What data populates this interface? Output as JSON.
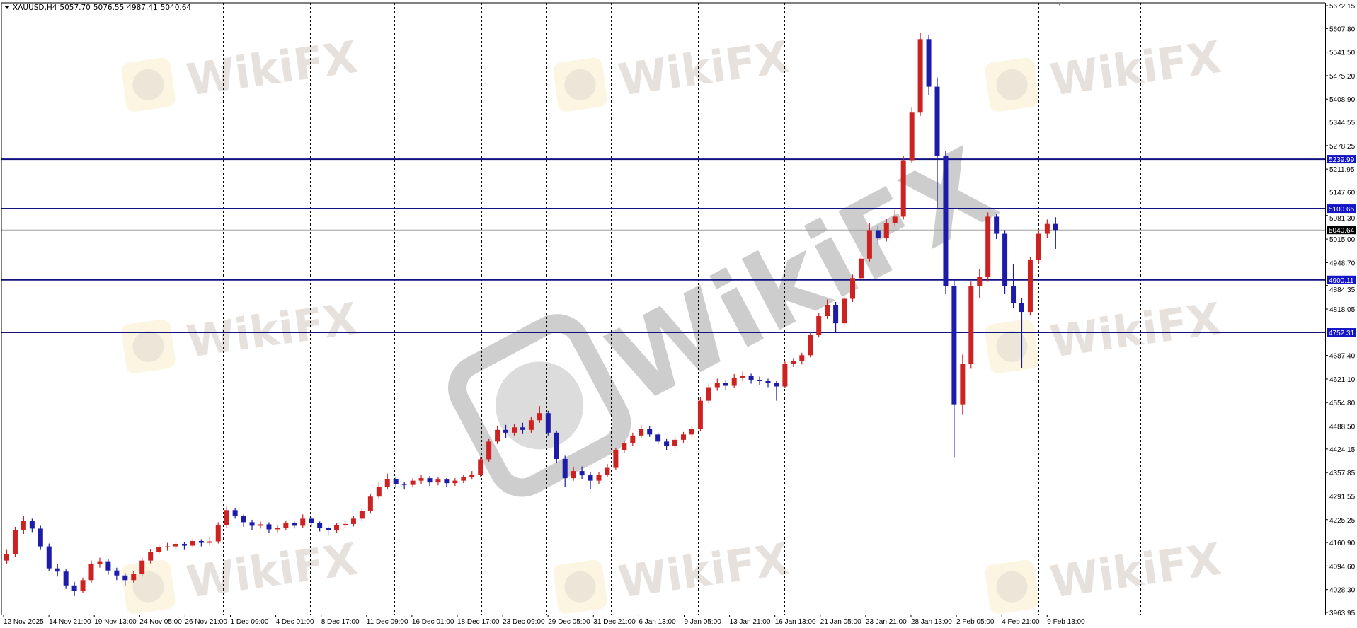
{
  "header": {
    "symbol": "XAUUSD,H4",
    "open": "5057.70",
    "high": "5076.55",
    "low": "4987.41",
    "close": "5040.64"
  },
  "watermark": "WikiFX",
  "colors": {
    "bull": "#cc2222",
    "bear": "#1c1ca8",
    "level_line": "#121280",
    "level_label_bg": "#1414c8",
    "current_label_bg": "#000000",
    "current_line": "#a0a0a0",
    "grid": "#000000"
  },
  "chart_data": {
    "type": "candlestick",
    "ylim": [
      3963.95,
      5672.15
    ],
    "grid": true,
    "y_ticks": [
      "5672.15",
      "5607.80",
      "5541.50",
      "5475.20",
      "5408.90",
      "5344.55",
      "5278.25",
      "5211.95",
      "5147.60",
      "5081.30",
      "5015.00",
      "4948.70",
      "4884.35",
      "4818.05",
      "4687.40",
      "4621.10",
      "4554.80",
      "4488.50",
      "4424.15",
      "4357.85",
      "4291.55",
      "4225.25",
      "4160.90",
      "4094.60",
      "4028.30",
      "3963.95"
    ],
    "x_ticks": [
      "12 Nov 2025",
      "14 Nov 21:00",
      "19 Nov 13:00",
      "24 Nov 05:00",
      "26 Nov 21:00",
      "1 Dec 09:00",
      "4 Dec 01:00",
      "8 Dec 17:00",
      "11 Dec 09:00",
      "16 Dec 01:00",
      "18 Dec 17:00",
      "23 Dec 09:00",
      "29 Dec 05:00",
      "31 Dec 21:00",
      "6 Jan 13:00",
      "9 Jan 05:00",
      "13 Jan 21:00",
      "16 Jan 13:00",
      "21 Jan 05:00",
      "23 Jan 21:00",
      "28 Jan 13:00",
      "2 Feb 05:00",
      "4 Feb 21:00",
      "9 Feb 13:00"
    ],
    "levels": [
      {
        "price": 5239.99,
        "label": "5239.99"
      },
      {
        "price": 5100.65,
        "label": "5100.65"
      },
      {
        "price": 4900.11,
        "label": "4900.11"
      },
      {
        "price": 4752.31,
        "label": "4752.31"
      }
    ],
    "current_price": {
      "price": 5040.64,
      "label": "5040.64"
    },
    "candles_ohlc": [
      [
        4110,
        4140,
        4100,
        4128
      ],
      [
        4128,
        4205,
        4120,
        4195
      ],
      [
        4195,
        4235,
        4185,
        4222
      ],
      [
        4222,
        4228,
        4190,
        4200
      ],
      [
        4200,
        4208,
        4140,
        4150
      ],
      [
        4150,
        4158,
        4080,
        4088
      ],
      [
        4088,
        4100,
        4065,
        4079
      ],
      [
        4079,
        4085,
        4030,
        4040
      ],
      [
        4040,
        4050,
        4010,
        4025
      ],
      [
        4025,
        4062,
        4018,
        4055
      ],
      [
        4055,
        4110,
        4048,
        4100
      ],
      [
        4100,
        4118,
        4090,
        4108
      ],
      [
        4108,
        4115,
        4070,
        4082
      ],
      [
        4082,
        4090,
        4055,
        4068
      ],
      [
        4068,
        4075,
        4040,
        4055
      ],
      [
        4055,
        4080,
        4048,
        4072
      ],
      [
        4072,
        4118,
        4065,
        4110
      ],
      [
        4110,
        4142,
        4102,
        4135
      ],
      [
        4135,
        4155,
        4128,
        4148
      ],
      [
        4148,
        4160,
        4138,
        4150
      ],
      [
        4150,
        4165,
        4142,
        4157
      ],
      [
        4157,
        4163,
        4140,
        4152
      ],
      [
        4152,
        4172,
        4146,
        4165
      ],
      [
        4165,
        4170,
        4150,
        4160
      ],
      [
        4160,
        4175,
        4152,
        4164
      ],
      [
        4164,
        4218,
        4158,
        4210
      ],
      [
        4210,
        4262,
        4202,
        4252
      ],
      [
        4252,
        4258,
        4228,
        4235
      ],
      [
        4235,
        4240,
        4205,
        4218
      ],
      [
        4218,
        4225,
        4195,
        4208
      ],
      [
        4208,
        4220,
        4200,
        4212
      ],
      [
        4212,
        4218,
        4188,
        4198
      ],
      [
        4198,
        4210,
        4190,
        4201
      ],
      [
        4201,
        4222,
        4195,
        4215
      ],
      [
        4215,
        4220,
        4200,
        4208
      ],
      [
        4208,
        4240,
        4202,
        4228
      ],
      [
        4228,
        4232,
        4205,
        4215
      ],
      [
        4215,
        4220,
        4192,
        4201
      ],
      [
        4201,
        4206,
        4182,
        4195
      ],
      [
        4195,
        4216,
        4188,
        4210
      ],
      [
        4210,
        4222,
        4203,
        4213
      ],
      [
        4213,
        4235,
        4206,
        4228
      ],
      [
        4228,
        4258,
        4220,
        4250
      ],
      [
        4250,
        4298,
        4242,
        4290
      ],
      [
        4290,
        4330,
        4282,
        4318
      ],
      [
        4318,
        4355,
        4310,
        4340
      ],
      [
        4340,
        4346,
        4315,
        4325
      ],
      [
        4325,
        4332,
        4310,
        4323
      ],
      [
        4323,
        4342,
        4316,
        4335
      ],
      [
        4335,
        4352,
        4326,
        4342
      ],
      [
        4342,
        4348,
        4320,
        4330
      ],
      [
        4330,
        4345,
        4322,
        4338
      ],
      [
        4338,
        4342,
        4318,
        4328
      ],
      [
        4328,
        4342,
        4320,
        4335
      ],
      [
        4335,
        4352,
        4328,
        4345
      ],
      [
        4345,
        4362,
        4338,
        4352
      ],
      [
        4352,
        4402,
        4345,
        4395
      ],
      [
        4395,
        4452,
        4388,
        4445
      ],
      [
        4445,
        4490,
        4438,
        4478
      ],
      [
        4478,
        4492,
        4455,
        4470
      ],
      [
        4470,
        4495,
        4462,
        4485
      ],
      [
        4485,
        4498,
        4468,
        4478
      ],
      [
        4478,
        4515,
        4470,
        4505
      ],
      [
        4505,
        4545,
        4498,
        4525
      ],
      [
        4525,
        4532,
        4462,
        4470
      ],
      [
        4470,
        4476,
        4385,
        4396
      ],
      [
        4396,
        4405,
        4318,
        4342
      ],
      [
        4342,
        4372,
        4335,
        4362
      ],
      [
        4362,
        4375,
        4340,
        4350
      ],
      [
        4350,
        4358,
        4312,
        4335
      ],
      [
        4335,
        4360,
        4325,
        4352
      ],
      [
        4352,
        4382,
        4345,
        4371
      ],
      [
        4371,
        4428,
        4365,
        4420
      ],
      [
        4420,
        4448,
        4412,
        4440
      ],
      [
        4440,
        4470,
        4432,
        4462
      ],
      [
        4462,
        4492,
        4455,
        4480
      ],
      [
        4480,
        4488,
        4458,
        4465
      ],
      [
        4465,
        4470,
        4438,
        4445
      ],
      [
        4445,
        4452,
        4420,
        4432
      ],
      [
        4432,
        4458,
        4425,
        4450
      ],
      [
        4450,
        4472,
        4442,
        4465
      ],
      [
        4465,
        4490,
        4458,
        4481
      ],
      [
        4481,
        4570,
        4475,
        4560
      ],
      [
        4560,
        4608,
        4552,
        4598
      ],
      [
        4598,
        4622,
        4588,
        4610
      ],
      [
        4610,
        4618,
        4590,
        4602
      ],
      [
        4602,
        4635,
        4595,
        4625
      ],
      [
        4625,
        4642,
        4615,
        4630
      ],
      [
        4630,
        4636,
        4608,
        4618
      ],
      [
        4618,
        4628,
        4605,
        4615
      ],
      [
        4615,
        4622,
        4598,
        4610
      ],
      [
        4610,
        4615,
        4560,
        4600
      ],
      [
        4600,
        4672,
        4595,
        4664
      ],
      [
        4664,
        4680,
        4655,
        4672
      ],
      [
        4672,
        4695,
        4662,
        4688
      ],
      [
        4688,
        4752,
        4682,
        4745
      ],
      [
        4745,
        4808,
        4738,
        4798
      ],
      [
        4798,
        4845,
        4790,
        4830
      ],
      [
        4830,
        4838,
        4752,
        4778
      ],
      [
        4778,
        4858,
        4770,
        4847
      ],
      [
        4847,
        4915,
        4838,
        4905
      ],
      [
        4905,
        4970,
        4895,
        4960
      ],
      [
        4960,
        5060,
        4952,
        5040
      ],
      [
        5040,
        5052,
        5000,
        5017
      ],
      [
        5017,
        5072,
        5008,
        5060
      ],
      [
        5060,
        5098,
        5050,
        5078
      ],
      [
        5078,
        5250,
        5070,
        5237
      ],
      [
        5237,
        5385,
        5228,
        5371
      ],
      [
        5371,
        5595,
        5362,
        5578
      ],
      [
        5578,
        5590,
        5420,
        5444
      ],
      [
        5444,
        5470,
        5100,
        5249
      ],
      [
        5249,
        5262,
        4860,
        4883
      ],
      [
        4883,
        4900,
        4401,
        4550
      ],
      [
        4550,
        4690,
        4520,
        4664
      ],
      [
        4664,
        4895,
        4650,
        4883
      ],
      [
        4883,
        4930,
        4850,
        4908
      ],
      [
        4908,
        5090,
        4895,
        5078
      ],
      [
        5078,
        5085,
        5015,
        5030
      ],
      [
        5030,
        5040,
        4860,
        4883
      ],
      [
        4883,
        4945,
        4820,
        4835
      ],
      [
        4835,
        4850,
        4652,
        4810
      ],
      [
        4810,
        4965,
        4800,
        4957
      ],
      [
        4957,
        5040,
        4945,
        5030
      ],
      [
        5030,
        5070,
        5018,
        5057.7
      ],
      [
        5057.7,
        5076.55,
        4987.41,
        5040.64
      ]
    ]
  }
}
